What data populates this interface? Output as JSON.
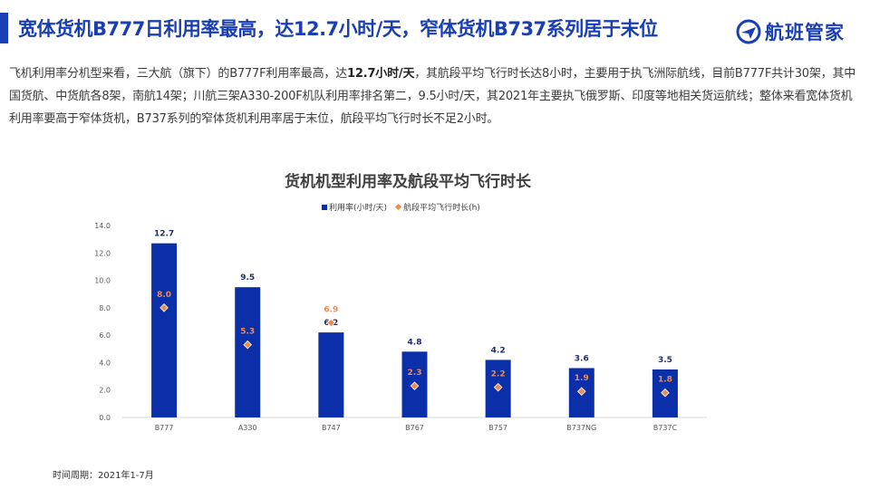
{
  "header": {
    "headline": "宽体货机B777日利用率最高，达12.7小时/天，窄体货机B737系列居于末位",
    "logo_text": "航班管家",
    "accent_color": "#1a3fb3"
  },
  "summary": {
    "part1": "飞机利用率分机型来看，三大航（旗下）的B777F利用率最高，达",
    "highlight": "12.7小时/天",
    "part2": "，其航段平均飞行时长达8小时，主要用于执飞洲际航线，目前B777F共计30架，其中国货航、中货航各8架，南航14架；川航三架A330-200F机队利用率排名第二，9.5小时/天，其2021年主要执飞俄罗斯、印度等地相关货运航线；整体来看宽体货机利用率要高于窄体货机，B737系列的窄体货机利用率居于末位，航段平均飞行时长不足2小时。"
  },
  "chart_data": {
    "type": "bar",
    "title": "货机机型利用率及航段平均飞行时长",
    "categories": [
      "B777",
      "A330",
      "B747",
      "B767",
      "B757",
      "B737NG",
      "B737C"
    ],
    "series": [
      {
        "name": "利用率(小时/天)",
        "kind": "bar",
        "color": "#0b2fa8",
        "values": [
          12.7,
          9.5,
          6.2,
          4.8,
          4.2,
          3.6,
          3.5
        ]
      },
      {
        "name": "航段平均飞行时长(h)",
        "kind": "marker",
        "color": "#ed8b52",
        "values": [
          8.0,
          5.3,
          6.9,
          2.3,
          2.2,
          1.9,
          1.8
        ]
      }
    ],
    "ylim": [
      0,
      14
    ],
    "yticks": [
      "0.0",
      "2.0",
      "4.0",
      "6.0",
      "8.0",
      "10.0",
      "12.0",
      "14.0"
    ],
    "legend_position": "top-center",
    "grid": false
  },
  "footnote": "时间周期：2021年1-7月"
}
